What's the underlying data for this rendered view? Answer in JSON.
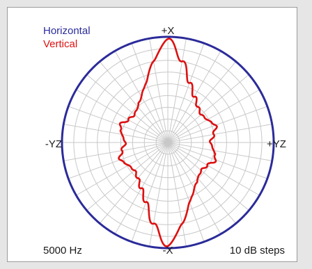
{
  "chart_data": {
    "type": "polar",
    "directions": {
      "top": "+X",
      "bottom": "-X",
      "left": "-YZ",
      "right": "+YZ"
    },
    "frequency_label": "5000 Hz",
    "step_label": "10 dB steps",
    "rings": 9,
    "spokes_deg": 10,
    "colors": {
      "Horizontal": "#2b2b9a",
      "Vertical": "#dd1111",
      "grid": "#c8c8c8",
      "text": "#1a1a1a"
    },
    "angles_deg": [
      0,
      10,
      20,
      30,
      40,
      50,
      60,
      70,
      80,
      90,
      100,
      110,
      120,
      130,
      140,
      150,
      160,
      170,
      180,
      190,
      200,
      210,
      220,
      230,
      240,
      250,
      260,
      270,
      280,
      290,
      300,
      310,
      320,
      330,
      340,
      350
    ],
    "radius_unit": "fraction of outer ring",
    "series": [
      {
        "name": "Horizontal",
        "r": [
          1.0,
          1.0,
          1.0,
          1.0,
          1.0,
          1.0,
          1.0,
          1.0,
          1.0,
          1.0,
          1.0,
          1.0,
          1.0,
          1.0,
          1.0,
          1.0,
          1.0,
          1.0,
          1.0,
          1.0,
          1.0,
          1.0,
          1.0,
          1.0,
          1.0,
          1.0,
          1.0,
          1.0,
          1.0,
          1.0,
          1.0,
          1.0,
          1.0,
          1.0,
          1.0,
          1.0
        ]
      },
      {
        "name": "Vertical",
        "r": [
          0.98,
          0.78,
          0.6,
          0.5,
          0.44,
          0.41,
          0.43,
          0.48,
          0.44,
          0.4,
          0.44,
          0.48,
          0.43,
          0.41,
          0.44,
          0.5,
          0.6,
          0.78,
          0.98,
          0.78,
          0.6,
          0.5,
          0.44,
          0.41,
          0.43,
          0.48,
          0.44,
          0.4,
          0.44,
          0.48,
          0.43,
          0.41,
          0.44,
          0.5,
          0.6,
          0.78
        ]
      }
    ]
  }
}
